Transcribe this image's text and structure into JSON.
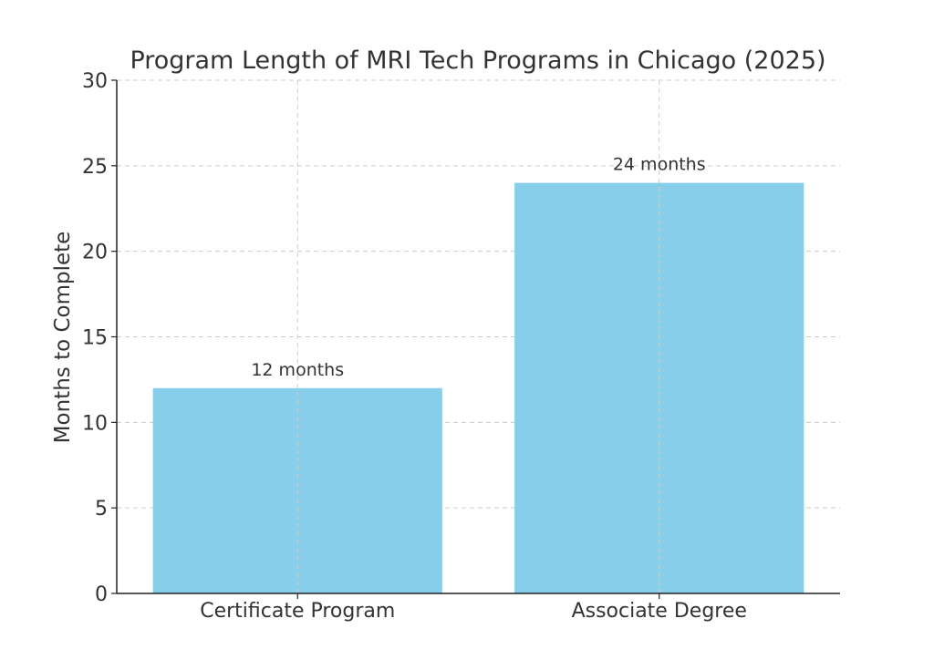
{
  "chart_data": {
    "type": "bar",
    "title": "Program Length of MRI Tech Programs in Chicago (2025)",
    "xlabel": "",
    "ylabel": "Months to Complete",
    "categories": [
      "Certificate Program",
      "Associate Degree"
    ],
    "values": [
      12,
      24
    ],
    "data_labels": [
      "12 months",
      "24 months"
    ],
    "ylim": [
      0,
      30
    ],
    "yticks": [
      0,
      5,
      10,
      15,
      20,
      25,
      30
    ],
    "grid": true,
    "bar_color": "#87CEEB",
    "axis_color": "#222222",
    "grid_color": "#cccccc",
    "text_color": "#333333"
  }
}
